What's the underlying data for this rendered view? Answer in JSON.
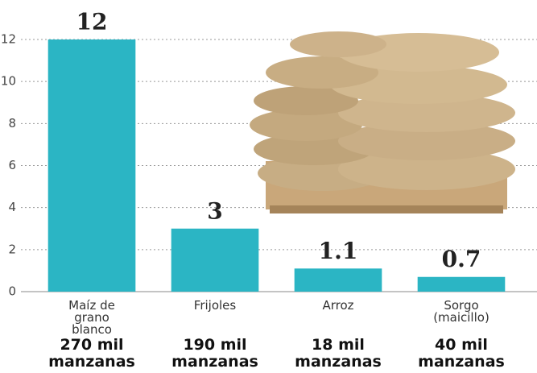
{
  "chart_data": {
    "type": "bar",
    "categories": [
      "Maíz de grano blanco",
      "Frijoles",
      "Arroz",
      "Sorgo (maicillo)"
    ],
    "category_notes": [
      "270 mil manzanas",
      "190 mil manzanas",
      "18 mil manzanas",
      "40 mil manzanas"
    ],
    "values": [
      12,
      3,
      1.1,
      0.7
    ],
    "color": "#2bb5c4",
    "ylim": [
      0,
      12
    ],
    "yticks": [
      0,
      2,
      4,
      6,
      8,
      10,
      12
    ],
    "grid": true
  }
}
